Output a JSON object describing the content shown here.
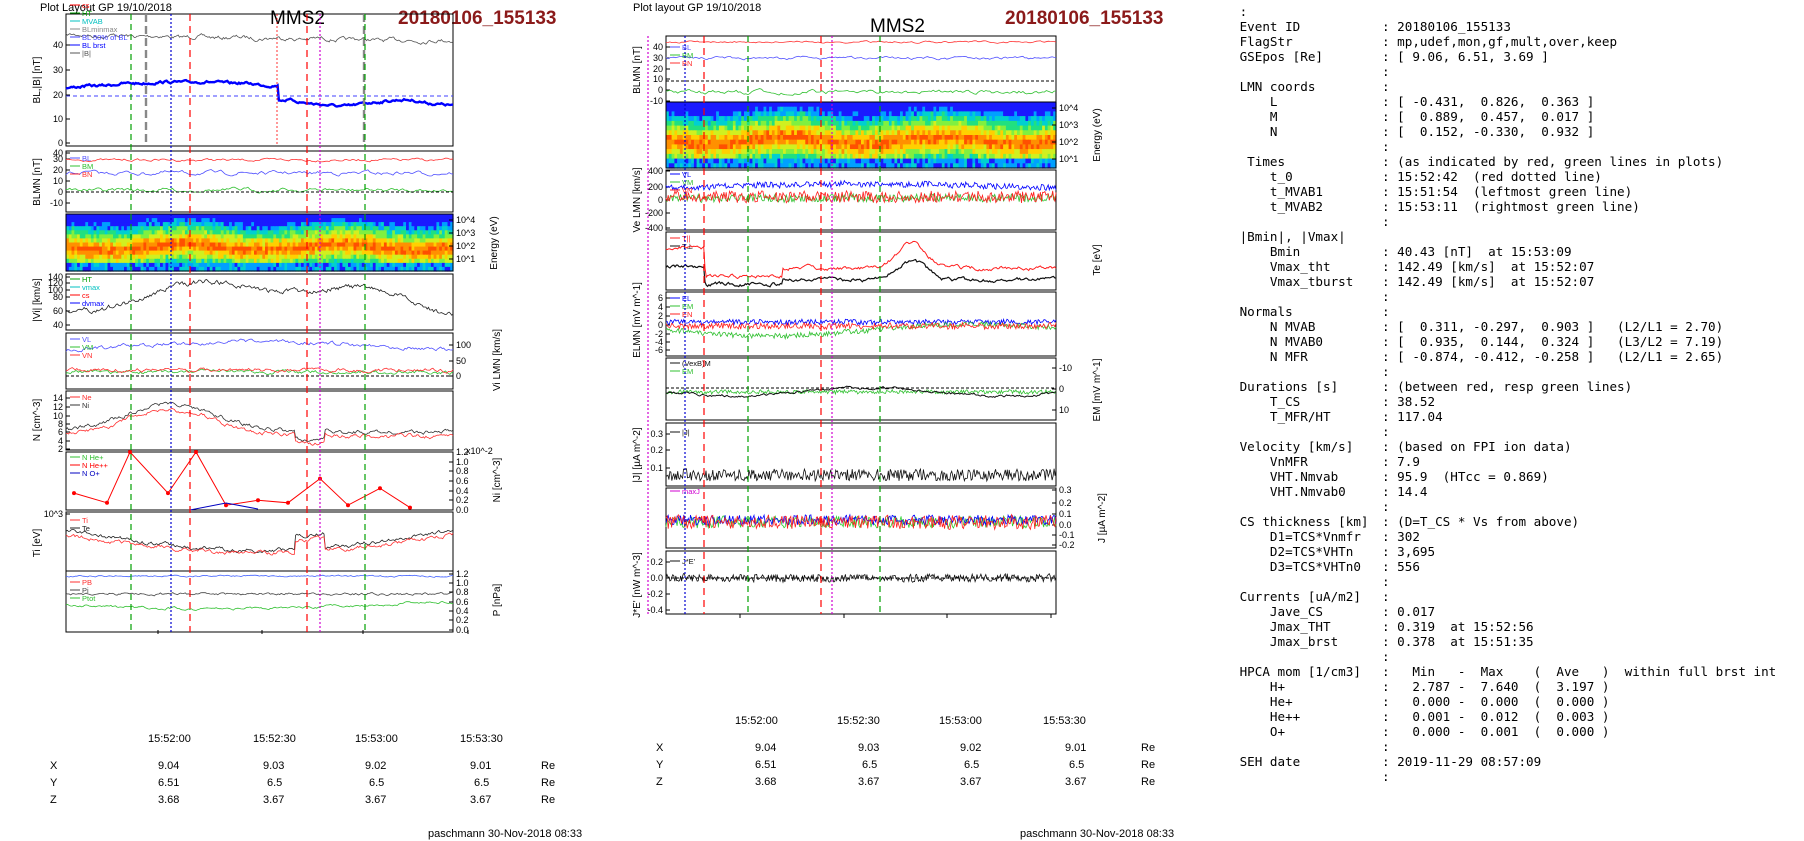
{
  "left_plot": {
    "header": "Plot Layout GP 19/10/2018",
    "spacecraft": "MMS2",
    "event": "20180106_155133",
    "footer": "paschmann 30-Nov-2018 08:33",
    "time_ticks": [
      "15:52:00",
      "15:52:30",
      "15:53:00",
      "15:53:30"
    ],
    "positions": {
      "X": [
        "9.04",
        "9.03",
        "9.02",
        "9.01"
      ],
      "Y": [
        "6.51",
        "6.5",
        "6.5",
        "6.5"
      ],
      "Z": [
        "3.68",
        "3.67",
        "3.67",
        "3.67"
      ],
      "unit": "Re"
    }
  },
  "right_plot": {
    "header": "Plot layout GP 19/10/2018",
    "spacecraft": "MMS2",
    "event": "20180106_155133",
    "footer": "paschmann 30-Nov-2018 08:33",
    "time_ticks": [
      "15:52:00",
      "15:52:30",
      "15:53:00",
      "15:53:30"
    ],
    "positions": {
      "X": [
        "9.04",
        "9.03",
        "9.02",
        "9.01"
      ],
      "Y": [
        "6.51",
        "6.5",
        "6.5",
        "6.5"
      ],
      "Z": [
        "3.68",
        "3.67",
        "3.67",
        "3.67"
      ],
      "unit": "Re"
    }
  },
  "chart_data": [
    {
      "type": "line",
      "panel": "left-B",
      "ylabel": "BL,|B| [nT]",
      "yticks": [
        "0",
        "10",
        "20",
        "30",
        "40"
      ],
      "ylim": [
        0,
        45
      ],
      "legend": [
        "cs",
        "HT",
        "MVAB",
        "BLminmax",
        "BL 50% of BL",
        "BL brst",
        "|B|"
      ],
      "series": [
        {
          "name": "|B|",
          "color": "#000000"
        },
        {
          "name": "BL brst",
          "color": "#0000ff"
        }
      ]
    },
    {
      "type": "line",
      "panel": "left-BLMN",
      "ylabel": "BLMN [nT]",
      "yticks": [
        "-10",
        "0",
        "10",
        "20",
        "30",
        "40"
      ],
      "ylim": [
        -15,
        40
      ],
      "legend": [
        "BL",
        "BM",
        "BN"
      ]
    },
    {
      "type": "heatmap",
      "panel": "left-spectrogram",
      "ylabel": "Energy (eV)",
      "yticks": [
        "10^4",
        "10^3",
        "10^2",
        "10^1"
      ]
    },
    {
      "type": "line",
      "panel": "left-Vi",
      "ylabel": "|Vi| [km/s]",
      "yticks": [
        "40",
        "60",
        "80",
        "100",
        "120",
        "140"
      ],
      "ylim": [
        35,
        145
      ],
      "legend": [
        "HT",
        "vmax",
        "cs",
        "dvmax"
      ]
    },
    {
      "type": "line",
      "panel": "left-ViLMN",
      "ylabel": "Vi LMN [km/s]",
      "yticks": [
        "0",
        "50",
        "100"
      ],
      "ylim": [
        -20,
        140
      ],
      "legend": [
        "VL",
        "VM",
        "VN"
      ]
    },
    {
      "type": "line",
      "panel": "left-N",
      "ylabel": "N [cm^-3]",
      "yticks": [
        "2",
        "4",
        "6",
        "8",
        "10",
        "12",
        "14"
      ],
      "ylim": [
        1.5,
        15
      ],
      "legend": [
        "Ne",
        "Ni"
      ]
    },
    {
      "type": "line",
      "panel": "left-Nhpca",
      "ylabel": "Ni [cm^-3]",
      "yticks": [
        "0.0",
        "0.2",
        "0.4",
        "0.6",
        "0.8",
        "1.0",
        "1.2"
      ],
      "ylim": [
        0,
        1.2
      ],
      "legend": [
        "N He+",
        "N He++",
        "N O+"
      ],
      "scale_note": "x10^-2",
      "series": [
        {
          "name": "N He++",
          "color": "#ff0000",
          "values": [
            0.35,
            0.15,
            1.2,
            0.35,
            1.2,
            0.1,
            0.2,
            0.15,
            0.65,
            0.1,
            0.45,
            0.05
          ]
        }
      ]
    },
    {
      "type": "line",
      "panel": "left-Ti",
      "ylabel": "Ti [eV]",
      "yticks": [
        "10^3"
      ],
      "legend": [
        "Ti",
        "Te"
      ]
    },
    {
      "type": "line",
      "panel": "left-P",
      "ylabel": "P [nPa]",
      "yticks": [
        "0.0",
        "0.2",
        "0.4",
        "0.6",
        "0.8",
        "1.0",
        "1.2"
      ],
      "ylim": [
        0,
        1.25
      ],
      "legend": [
        "PB",
        "Pi",
        "Ptot"
      ]
    },
    {
      "type": "line",
      "panel": "right-BLMN",
      "ylabel": "BLMN [nT]",
      "yticks": [
        "-10",
        "0",
        "10",
        "20",
        "30",
        "40"
      ],
      "ylim": [
        -15,
        42
      ],
      "legend": [
        "BL",
        "BM",
        "BN"
      ]
    },
    {
      "type": "heatmap",
      "panel": "right-spectrogram",
      "ylabel": "Energy (eV)",
      "yticks": [
        "10^4",
        "10^3",
        "10^2",
        "10^1"
      ]
    },
    {
      "type": "line",
      "panel": "right-Ve",
      "ylabel": "Ve LMN [km/s]",
      "yticks": [
        "-400",
        "-200",
        "0",
        "200",
        "400"
      ],
      "ylim": [
        -450,
        450
      ],
      "legend": [
        "VL",
        "VM",
        "VN"
      ]
    },
    {
      "type": "line",
      "panel": "right-Te",
      "ylabel": "Te [eV]",
      "legend": [
        "T||",
        "T⊥"
      ]
    },
    {
      "type": "line",
      "panel": "right-ELMN",
      "ylabel": "ELMN [mV m^-1]",
      "yticks": [
        "-6",
        "-4",
        "-2",
        "0",
        "2",
        "4",
        "6"
      ],
      "ylim": [
        -7,
        7
      ],
      "legend": [
        "EL",
        "EM",
        "EN"
      ]
    },
    {
      "type": "line",
      "panel": "right-EM",
      "ylabel": "EM [mV m^-1]",
      "yticks": [
        "-10",
        "0",
        "10"
      ],
      "ylim": [
        -15,
        15
      ],
      "legend": [
        "(VexB)M",
        "EM"
      ]
    },
    {
      "type": "line",
      "panel": "right-J",
      "ylabel": "|J| [µA m^-2]",
      "yticks": [
        "0.1",
        "0.2",
        "0.3"
      ],
      "ylim": [
        0,
        0.35
      ],
      "legend": [
        "|J|"
      ]
    },
    {
      "type": "line",
      "panel": "right-Jlmn",
      "ylabel": "J [µA m^-2]",
      "yticks": [
        "-0.2",
        "-0.1",
        "0.0",
        "0.1",
        "0.2",
        "0.3"
      ],
      "ylim": [
        -0.25,
        0.3
      ],
      "legend": [
        "maxJ"
      ]
    },
    {
      "type": "line",
      "panel": "right-JE",
      "ylabel": "J*E' [nW m^-3]",
      "yticks": [
        "-0.4",
        "-0.2",
        "0.0",
        "0.2"
      ],
      "ylim": [
        -0.45,
        0.25
      ],
      "legend": [
        "J*E'"
      ]
    }
  ],
  "info": {
    "rows": [
      {
        "k": " :",
        "v": ""
      },
      {
        "k": " Event ID",
        "v": ": 20180106_155133"
      },
      {
        "k": " FlagStr",
        "v": ": mp,udef,mon,gf,mult,over,keep"
      },
      {
        "k": " GSEpos [Re]",
        "v": ": [ 9.06, 6.51, 3.69 ]"
      },
      {
        "k": "",
        "v": ":"
      },
      {
        "k": " LMN coords",
        "v": ":"
      },
      {
        "k": "     L",
        "v": ": [ -0.431,  0.826,  0.363 ]"
      },
      {
        "k": "     M",
        "v": ": [  0.889,  0.457,  0.017 ]"
      },
      {
        "k": "     N",
        "v": ": [  0.152, -0.330,  0.932 ]"
      },
      {
        "k": "",
        "v": ":"
      },
      {
        "k": "  Times",
        "v": ": (as indicated by red, green lines in plots)"
      },
      {
        "k": "     t_0",
        "v": ": 15:52:42  (red dotted line)"
      },
      {
        "k": "     t_MVAB1",
        "v": ": 15:51:54  (leftmost green line)"
      },
      {
        "k": "     t_MVAB2",
        "v": ": 15:53:11  (rightmost green line)"
      },
      {
        "k": "",
        "v": ":"
      },
      {
        "k": " |Bmin|, |Vmax|",
        "v": ""
      },
      {
        "k": "     Bmin",
        "v": ": 40.43 [nT]  at 15:53:09"
      },
      {
        "k": "     Vmax_tht",
        "v": ": 142.49 [km/s]  at 15:52:07"
      },
      {
        "k": "     Vmax_tburst",
        "v": ": 142.49 [km/s]  at 15:52:07"
      },
      {
        "k": "",
        "v": ":"
      },
      {
        "k": " Normals",
        "v": ":"
      },
      {
        "k": "     N MVAB",
        "v": ": [  0.311, -0.297,  0.903 ]   (L2/L1 = 2.70)"
      },
      {
        "k": "     N MVAB0",
        "v": ": [  0.935,  0.144,  0.324 ]   (L3/L2 = 7.19)"
      },
      {
        "k": "     N MFR",
        "v": ": [ -0.874, -0.412, -0.258 ]   (L2/L1 = 2.65)"
      },
      {
        "k": "",
        "v": ":"
      },
      {
        "k": " Durations [s]",
        "v": ": (between red, resp green lines)"
      },
      {
        "k": "     T_CS",
        "v": ": 38.52"
      },
      {
        "k": "     T_MFR/HT",
        "v": ": 117.04"
      },
      {
        "k": "",
        "v": ":"
      },
      {
        "k": " Velocity [km/s]",
        "v": ": (based on FPI ion data)"
      },
      {
        "k": "     VnMFR",
        "v": ": 7.9"
      },
      {
        "k": "     VHT.Nmvab",
        "v": ": 95.9  (HTcc = 0.869)"
      },
      {
        "k": "     VHT.Nmvab0",
        "v": ": 14.4"
      },
      {
        "k": "",
        "v": ":"
      },
      {
        "k": " CS thickness [km]",
        "v": ": (D=T_CS * Vs from above)"
      },
      {
        "k": "     D1=TCS*Vnmfr",
        "v": ": 302"
      },
      {
        "k": "     D2=TCS*VHTn",
        "v": ": 3,695"
      },
      {
        "k": "     D3=TCS*VHTn0",
        "v": ": 556"
      },
      {
        "k": "",
        "v": ":"
      },
      {
        "k": " Currents [uA/m2]",
        "v": ":"
      },
      {
        "k": "     Jave_CS",
        "v": ": 0.017"
      },
      {
        "k": "     Jmax_THT",
        "v": ": 0.319  at 15:52:56"
      },
      {
        "k": "     Jmax_brst",
        "v": ": 0.378  at 15:51:35"
      },
      {
        "k": "",
        "v": ":"
      },
      {
        "k": " HPCA mom [1/cm3]",
        "v": ":   Min   -  Max    (  Ave   )  within full brst int"
      },
      {
        "k": "     H+",
        "v": ":   2.787 -  7.640  (  3.197 )"
      },
      {
        "k": "     He+",
        "v": ":   0.000 -  0.000  (  0.000 )"
      },
      {
        "k": "     He++",
        "v": ":   0.001 -  0.012  (  0.003 )"
      },
      {
        "k": "     O+",
        "v": ":   0.000 -  0.001  (  0.000 )"
      },
      {
        "k": "",
        "v": ":"
      },
      {
        "k": " SEH date",
        "v": ": 2019-11-29 08:57:09"
      },
      {
        "k": "",
        "v": ":"
      }
    ]
  }
}
